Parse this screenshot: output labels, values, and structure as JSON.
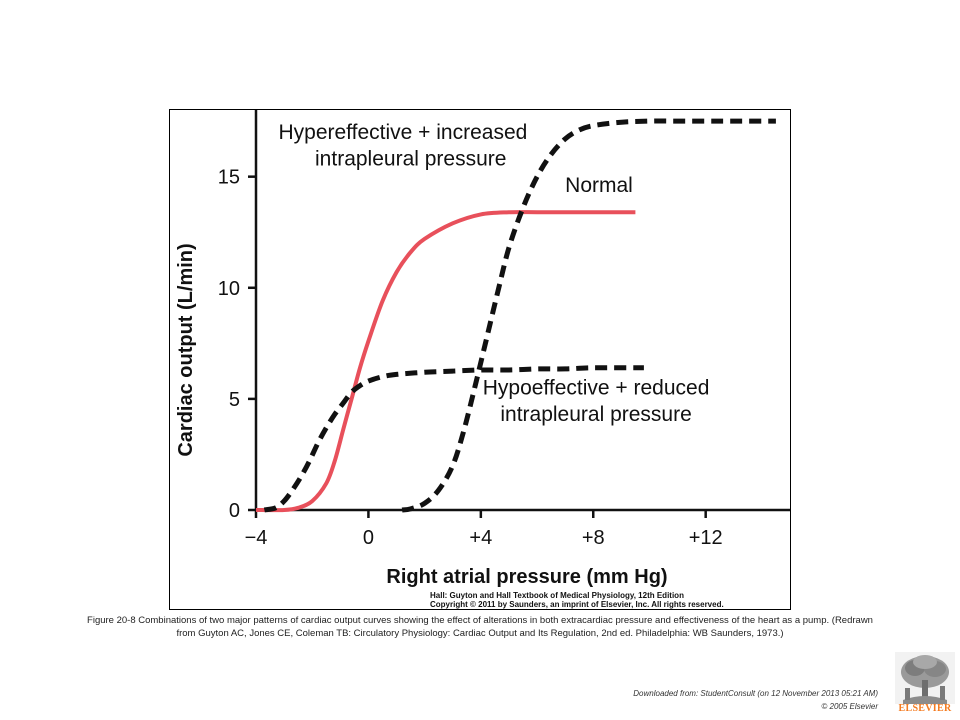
{
  "chart_data": {
    "type": "line",
    "xlabel": "Right atrial pressure (mm Hg)",
    "ylabel": "Cardiac output (L/min)",
    "xlim": [
      -4,
      15
    ],
    "ylim": [
      0,
      18
    ],
    "x_ticks": [
      -4,
      0,
      4,
      8,
      12
    ],
    "x_tick_labels": [
      "−4",
      "0",
      "+4",
      "+8",
      "+12"
    ],
    "y_ticks": [
      0,
      5,
      10,
      15
    ],
    "y_tick_labels": [
      "0",
      "5",
      "10",
      "15"
    ],
    "grid": false,
    "series": [
      {
        "name": "Normal",
        "style": "solid",
        "color": "#e8505b",
        "x": [
          -4,
          -3,
          -2.5,
          -2,
          -1.5,
          -1.2,
          -0.9,
          -0.6,
          -0.3,
          0,
          0.5,
          1,
          1.5,
          2,
          3,
          4,
          5,
          6,
          7,
          8,
          9.5
        ],
        "y": [
          0,
          0,
          0.1,
          0.4,
          1.2,
          2.2,
          3.6,
          5.0,
          6.4,
          7.6,
          9.4,
          10.7,
          11.6,
          12.2,
          12.9,
          13.3,
          13.4,
          13.4,
          13.4,
          13.4,
          13.4
        ]
      },
      {
        "name": "Hypereffective + increased intrapleural pressure",
        "style": "dashed",
        "color": "#111111",
        "x": [
          1.2,
          1.5,
          2,
          2.5,
          3,
          3.4,
          3.8,
          4.2,
          4.6,
          5,
          5.5,
          6,
          6.5,
          7,
          7.5,
          8,
          9,
          10,
          11,
          12,
          13,
          14.5
        ],
        "y": [
          0,
          0.05,
          0.3,
          0.9,
          2.0,
          3.6,
          5.6,
          7.7,
          9.8,
          11.8,
          13.6,
          15.0,
          16.0,
          16.7,
          17.1,
          17.3,
          17.45,
          17.5,
          17.5,
          17.5,
          17.5,
          17.5
        ]
      },
      {
        "name": "Hypoeffective + reduced intrapleural pressure",
        "style": "dashed",
        "color": "#111111",
        "x": [
          -3.7,
          -3.3,
          -3.0,
          -2.7,
          -2.4,
          -2.1,
          -1.8,
          -1.5,
          -1.2,
          -0.9,
          -0.6,
          -0.3,
          0,
          0.5,
          1,
          2,
          3,
          4,
          5,
          6,
          7,
          8,
          9.8
        ],
        "y": [
          0,
          0.1,
          0.4,
          0.9,
          1.5,
          2.2,
          3.0,
          3.7,
          4.3,
          4.8,
          5.3,
          5.6,
          5.8,
          6.0,
          6.1,
          6.2,
          6.25,
          6.3,
          6.3,
          6.35,
          6.35,
          6.4,
          6.4
        ]
      }
    ],
    "annotations": [
      {
        "id": "hyper-line-1",
        "text": "Hypereffective + increased",
        "x": -3.2,
        "y": 16.7,
        "anchor": "start"
      },
      {
        "id": "hyper-line-2",
        "text": "intrapleural pressure",
        "x": -1.9,
        "y": 15.5,
        "anchor": "start"
      },
      {
        "id": "normal",
        "text": "Normal",
        "x": 7.0,
        "y": 14.3,
        "anchor": "start"
      },
      {
        "id": "hypo-line-1",
        "text": "Hypoeffective + reduced",
        "x": 8.1,
        "y": 5.2,
        "anchor": "middle"
      },
      {
        "id": "hypo-line-2",
        "text": "intrapleural pressure",
        "x": 8.1,
        "y": 4.0,
        "anchor": "middle"
      }
    ]
  },
  "figure_credit": {
    "line1": "Hall: Guyton and Hall Textbook of Medical Physiology, 12th Edition",
    "line2": "Copyright © 2011 by Saunders, an imprint of Elsevier, Inc. All rights reserved."
  },
  "caption": "Figure 20-8 Combinations of two major patterns of cardiac output curves showing the effect of alterations in both extracardiac pressure and effectiveness of the heart as a pump. (Redrawn from Guyton AC, Jones CE, Coleman TB: Circulatory Physiology: Cardiac Output and Its Regulation, 2nd ed. Philadelphia: WB Saunders, 1973.)",
  "footer": {
    "download_note": "Downloaded from: StudentConsult (on 12 November 2013 05:21 AM)",
    "copyright": "© 2005 Elsevier",
    "logo_text": "ELSEVIER"
  },
  "icons": {
    "logo": "elsevier-tree-logo"
  }
}
